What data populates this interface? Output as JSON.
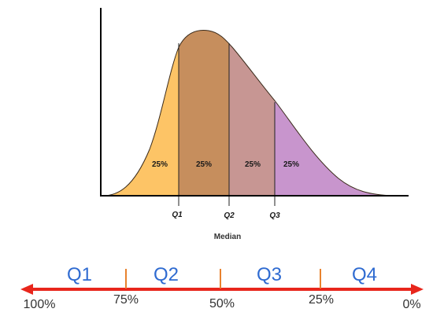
{
  "colors": {
    "q1_fill": "#FDC466",
    "q2_fill": "#C68E5D",
    "q3_fill": "#C79693",
    "q4_fill": "#C895CD",
    "axis": "#000000",
    "arrow": "#E8261C",
    "quartile_text": "#2F6BD1",
    "tick": "#E8822E"
  },
  "curve": {
    "segment_labels": [
      "25%",
      "25%",
      "25%",
      "25%"
    ],
    "markers": [
      "Q1",
      "Q2",
      "Q3"
    ],
    "median_label": "Median"
  },
  "scale": {
    "quartile_names": [
      "Q1",
      "Q2",
      "Q3",
      "Q4"
    ],
    "percent_labels": [
      "100%",
      "75%",
      "50%",
      "25%",
      "0%"
    ]
  }
}
